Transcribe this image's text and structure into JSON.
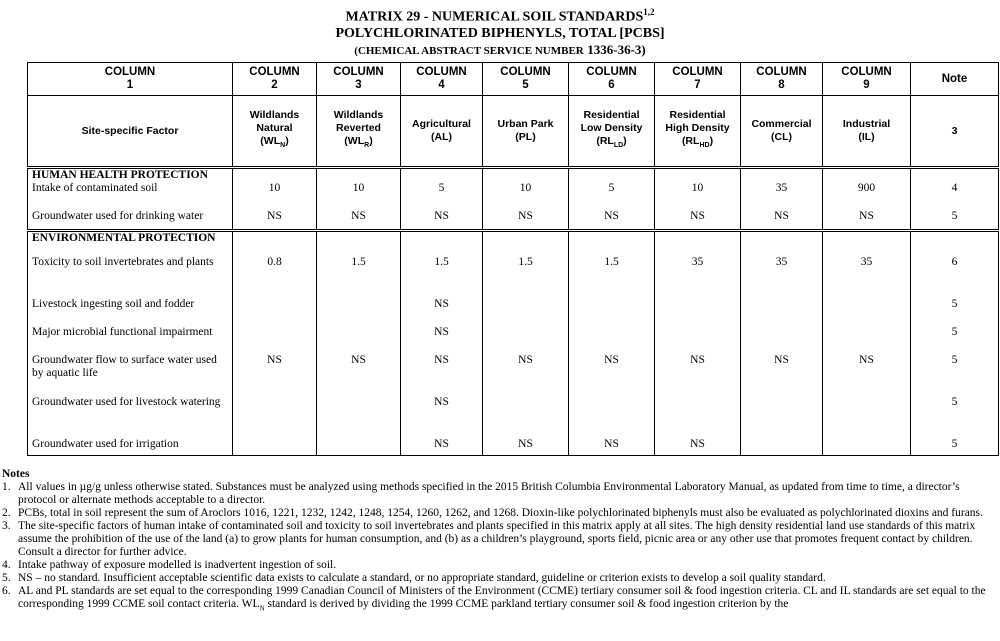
{
  "header": {
    "title": "MATRIX 29 - NUMERICAL SOIL STANDARDS",
    "title_sup": "1,2",
    "subtitle": "POLYCHLORINATED BIPHENYLS, TOTAL [PCBS]",
    "cas_label": "(CHEMICAL ABSTRACT SERVICE NUMBER",
    "cas_number": "1336-36-3)"
  },
  "table": {
    "column_headers": [
      {
        "label": "COLUMN",
        "number": "1"
      },
      {
        "label": "COLUMN",
        "number": "2"
      },
      {
        "label": "COLUMN",
        "number": "3"
      },
      {
        "label": "COLUMN",
        "number": "4"
      },
      {
        "label": "COLUMN",
        "number": "5"
      },
      {
        "label": "COLUMN",
        "number": "6"
      },
      {
        "label": "COLUMN",
        "number": "7"
      },
      {
        "label": "COLUMN",
        "number": "8"
      },
      {
        "label": "COLUMN",
        "number": "9"
      },
      {
        "label": "Note"
      }
    ],
    "factor_header": "Site-specific Factor",
    "land_uses": [
      {
        "name": "Wildlands Natural",
        "abbr": "(WL",
        "sub": "N",
        "close": ")"
      },
      {
        "name": "Wildlands Reverted",
        "abbr": "(WL",
        "sub": "R",
        "close": ")"
      },
      {
        "name": "Agricultural",
        "abbr": "(AL)"
      },
      {
        "name": "Urban Park",
        "abbr": "(PL)"
      },
      {
        "name": "Residential Low Density",
        "abbr": "(RL",
        "sub": "LD",
        "close": ")"
      },
      {
        "name": "Residential High Density",
        "abbr": "(RL",
        "sub": "HD",
        "close": ")"
      },
      {
        "name": "Commercial",
        "abbr": "(CL)"
      },
      {
        "name": "Industrial",
        "abbr": "(IL)"
      }
    ],
    "note_header": "3",
    "sections": [
      {
        "heading": "HUMAN HEALTH  PROTECTION",
        "rows": [
          {
            "factor": "Intake of contaminated soil",
            "values": [
              10,
              10,
              5,
              10,
              5,
              10,
              35,
              900
            ],
            "note": "4"
          },
          {
            "factor": "Groundwater used for drinking water",
            "values": [
              "NS",
              "NS",
              "NS",
              "NS",
              "NS",
              "NS",
              "NS",
              "NS"
            ],
            "note": "5"
          }
        ]
      },
      {
        "heading": "ENVIRONMENTAL PROTECTION",
        "rows": [
          {
            "factor": "Toxicity to soil invertebrates and plants",
            "values": [
              0.8,
              1.5,
              1.5,
              1.5,
              1.5,
              35,
              35,
              35
            ],
            "note": "6"
          },
          {
            "factor": "Livestock ingesting soil and fodder",
            "values": [
              null,
              null,
              "NS",
              null,
              null,
              null,
              null,
              null
            ],
            "note": "5"
          },
          {
            "factor": "Major microbial functional impairment",
            "values": [
              null,
              null,
              "NS",
              null,
              null,
              null,
              null,
              null
            ],
            "note": "5"
          },
          {
            "factor": "Groundwater flow to surface water used by aquatic life",
            "values": [
              "NS",
              "NS",
              "NS",
              "NS",
              "NS",
              "NS",
              "NS",
              "NS"
            ],
            "note": "5"
          },
          {
            "factor": "Groundwater used for livestock watering",
            "values": [
              null,
              null,
              "NS",
              null,
              null,
              null,
              null,
              null
            ],
            "note": "5"
          },
          {
            "factor": "Groundwater used for irrigation",
            "values": [
              null,
              null,
              "NS",
              "NS",
              "NS",
              "NS",
              null,
              null
            ],
            "note": "5"
          }
        ]
      }
    ]
  },
  "notes": {
    "heading": "Notes",
    "items": [
      {
        "number": "1.",
        "text": "All values in µg/g unless otherwise stated.  Substances must be analyzed using methods specified in the 2015 British Columbia Environmental Laboratory Manual, as updated from time to time, a director’s protocol or alternate methods acceptable to a director."
      },
      {
        "number": "2.",
        "text": "PCBs, total in soil represent the sum of Aroclors 1016, 1221, 1232, 1242, 1248, 1254, 1260, 1262, and 1268. Dioxin-like polychlorinated biphenyls must also be evaluated as polychlorinated dioxins and furans."
      },
      {
        "number": "3.",
        "text": "The site-specific factors of human intake of contaminated soil and toxicity to soil invertebrates and plants specified in this matrix apply at all sites. The high density residential land use standards of this matrix assume the prohibition of the use of the land (a) to grow plants for human consumption, and (b) as a children’s playground, sports field, picnic area or any other use that promotes frequent contact by children. Consult a director for further advice."
      },
      {
        "number": "4.",
        "text": "Intake pathway of exposure modelled is inadvertent ingestion of soil."
      },
      {
        "number": "5.",
        "text": "NS – no standard. Insufficient acceptable scientific data exists to calculate a standard, or no appropriate standard, guideline or criterion exists to develop a soil quality standard."
      },
      {
        "number": "6.",
        "text": "AL and PL standards are set equal to the corresponding 1999 Canadian Council of Ministers of the Environment (CCME) tertiary consumer soil & food ingestion criteria. CL and IL standards are set equal to the corresponding 1999 CCME soil contact criteria.  WL",
        "sub": "N",
        "text_end": " standard is derived by dividing the 1999 CCME parkland tertiary consumer soil & food ingestion criterion by the"
      }
    ]
  }
}
